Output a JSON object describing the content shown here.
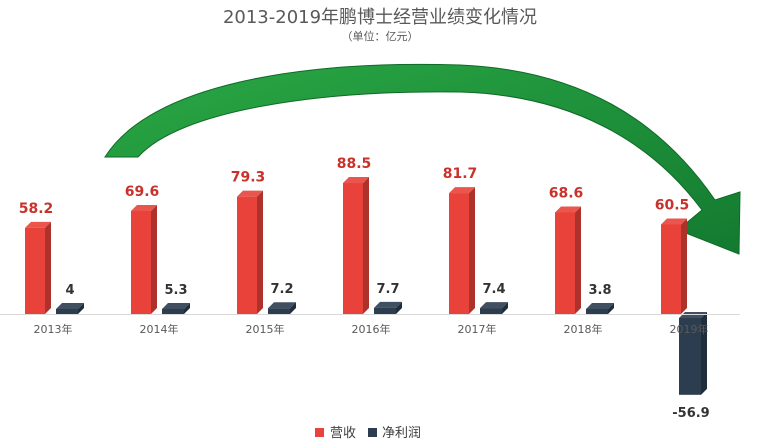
{
  "chart_data": {
    "type": "bar",
    "title": "2013-2019年鹏博士经营业绩变化情况",
    "subtitle": "（单位：亿元）",
    "categories": [
      "2013年",
      "2014年",
      "2015年",
      "2016年",
      "2017年",
      "2018年",
      "2019年"
    ],
    "series": [
      {
        "name": "营收",
        "values": [
          58.2,
          69.6,
          79.3,
          88.5,
          81.7,
          68.6,
          60.5
        ],
        "color": "#e8423a"
      },
      {
        "name": "净利润",
        "values": [
          4,
          5.3,
          7.2,
          7.7,
          7.4,
          3.8,
          -56.9
        ],
        "color": "#2b3d4f"
      }
    ],
    "value_labels": {
      "revenue": [
        "58.2",
        "69.6",
        "79.3",
        "88.5",
        "81.7",
        "68.6",
        "60.5"
      ],
      "profit": [
        "4",
        "5.3",
        "7.2",
        "7.7",
        "7.4",
        "3.8",
        "-56.9"
      ]
    },
    "ylim": [
      -60,
      95
    ],
    "grid": false,
    "legend": "bottom-center",
    "annotation": {
      "type": "curved-arrow",
      "color": "#1f8f3a"
    }
  }
}
